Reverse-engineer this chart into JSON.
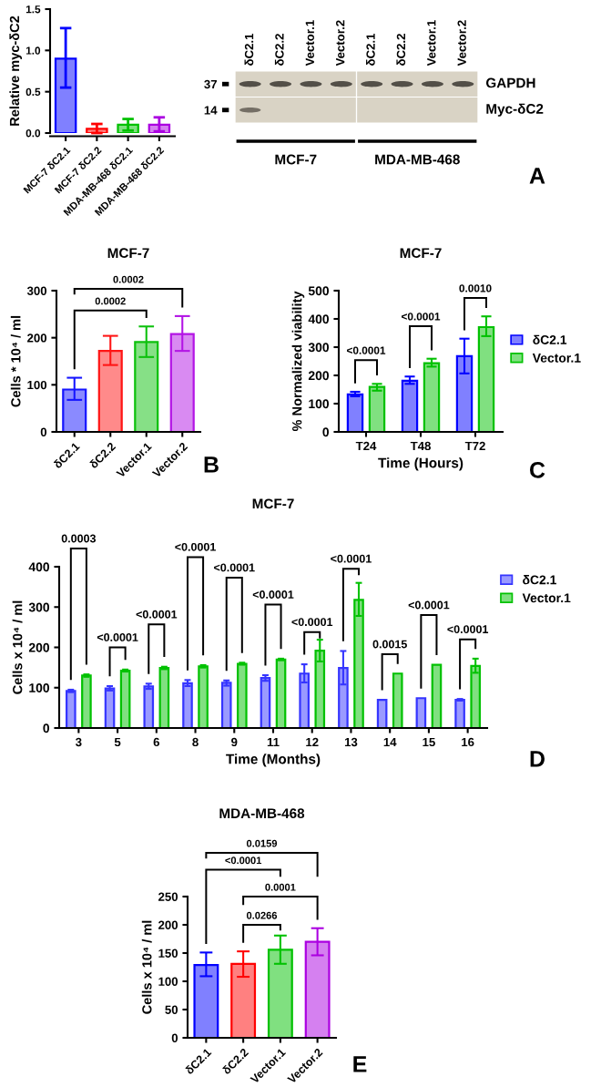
{
  "chart_data": [
    {
      "type": "bar",
      "ylabel": "Relative myc-δC2",
      "categories": [
        "MCF-7 δC2.1",
        "MCF-7 δC2.2",
        "MDA-MB-468 δC2.1",
        "MDA-MB-468 δC2.2"
      ],
      "values": [
        0.9,
        0.05,
        0.1,
        0.1
      ],
      "errors": [
        [
          0.55,
          1.27
        ],
        [
          0,
          0.11
        ],
        [
          0.03,
          0.17
        ],
        [
          0.02,
          0.19
        ]
      ],
      "colors": [
        "#8080ff",
        "#ff8080",
        "#80e080",
        "#d580f0"
      ],
      "ylim": [
        0,
        1.5
      ],
      "yticks": [
        {
          "value": 0,
          "label": "0.0"
        },
        {
          "value": 0.5,
          "label": "0.5"
        },
        {
          "value": 1,
          "label": "1.0"
        },
        {
          "value": 1.5,
          "label": "1.5"
        }
      ]
    },
    {
      "type": "other",
      "categories": [
        "δC2.1",
        "δC2.2",
        "Vector.1",
        "Vector.2",
        "δC2.1",
        "δC2.2",
        "Vector.1",
        "Vector.2"
      ],
      "y_categories": [
        "37",
        "14"
      ],
      "y2_categories": [
        "GAPDH",
        "Myc-δC2"
      ],
      "annotations": [
        "MCF-7",
        "MDA-MB-468",
        "A"
      ]
    },
    {
      "type": "bar",
      "title": "MCF-7",
      "ylabel": "Cells * 10⁴ / ml",
      "categories": [
        "δC2.1",
        "δC2.2",
        "Vector.1",
        "Vector.2"
      ],
      "values": [
        90,
        172,
        191,
        208
      ],
      "errors": [
        [
          68,
          115
        ],
        [
          142,
          204
        ],
        [
          159,
          224
        ],
        [
          172,
          246
        ]
      ],
      "colors": [
        "#8a8aff",
        "#ff8a8a",
        "#86e086",
        "#d98af2"
      ],
      "ylim": [
        0,
        300
      ],
      "yticks": [
        0,
        100,
        200,
        300
      ],
      "annotations": [
        "0.0002",
        "0.0002",
        "B"
      ]
    },
    {
      "type": "bar",
      "title": "MCF-7",
      "xlabel": "Time (Hours)",
      "ylabel": "% Normalized viability",
      "categories": [
        "T24",
        "T48",
        "T72"
      ],
      "series": [
        {
          "name": "δC2.1",
          "color": "#8080ff",
          "values": [
            133,
            181,
            268
          ],
          "errors": [
            [
              126,
              142
            ],
            [
              170,
              196
            ],
            [
              207,
              330
            ]
          ]
        },
        {
          "name": "Vector.1",
          "color": "#80e080",
          "values": [
            159,
            243,
            371
          ],
          "errors": [
            [
              146,
              170
            ],
            [
              231,
              259
            ],
            [
              339,
              409
            ]
          ]
        }
      ],
      "ylim": [
        0,
        500
      ],
      "yticks": [
        0,
        100,
        200,
        300,
        400,
        500
      ],
      "legend": "right",
      "annotations": [
        "<0.0001",
        "<0.0001",
        "0.0010",
        "C"
      ]
    },
    {
      "type": "bar",
      "title": "MCF-7",
      "xlabel": "Time (Months)",
      "ylabel": "Cells x 10⁴ / ml",
      "categories": [
        "3",
        "5",
        "6",
        "8",
        "9",
        "11",
        "12",
        "13",
        "14",
        "15",
        "16"
      ],
      "series": [
        {
          "name": "δC2.1",
          "color": "#9a9aff",
          "values": [
            92,
            98,
            103,
            111,
            112,
            124,
            135,
            149,
            70,
            74,
            70
          ],
          "errors": [
            [
              89,
              95
            ],
            [
              93,
              104
            ],
            [
              97,
              110
            ],
            [
              104,
              119
            ],
            [
              105,
              118
            ],
            [
              117,
              131
            ],
            [
              113,
              158
            ],
            [
              108,
              191
            ],
            null,
            null,
            [
              68,
              72
            ]
          ]
        },
        {
          "name": "Vector.1",
          "color": "#80e080",
          "values": [
            130,
            142,
            149,
            153,
            159,
            170,
            192,
            318,
            135,
            157,
            154
          ],
          "errors": [
            [
              127,
              133
            ],
            [
              140,
              145
            ],
            [
              146,
              152
            ],
            [
              150,
              156
            ],
            [
              157,
              162
            ],
            [
              168,
              172
            ],
            [
              165,
              219
            ],
            [
              278,
              360
            ],
            null,
            null,
            [
              137,
              172
            ]
          ]
        }
      ],
      "ylim": [
        0,
        400
      ],
      "yticks": [
        0,
        100,
        200,
        300,
        400
      ],
      "legend": "top right",
      "annotations": [
        "0.0003",
        "<0.0001",
        "<0.0001",
        "<0.0001",
        "<0.0001",
        "<0.0001",
        "<0.0001",
        "<0.0001",
        "0.0015",
        "<0.0001",
        "<0.0001",
        "D"
      ]
    },
    {
      "type": "bar",
      "title": "MDA-MB-468",
      "ylabel": "Cells x 10⁴ / ml",
      "categories": [
        "δC2.1",
        "δC2.2",
        "Vector.1",
        "Vector.2"
      ],
      "values": [
        129,
        131,
        156,
        170
      ],
      "errors": [
        [
          109,
          151
        ],
        [
          108,
          153
        ],
        [
          131,
          181
        ],
        [
          146,
          194
        ]
      ],
      "colors": [
        "#8080ff",
        "#ff8080",
        "#80e080",
        "#d580f0"
      ],
      "ylim": [
        0,
        250
      ],
      "yticks": [
        0,
        50,
        100,
        150,
        200,
        250
      ],
      "annotations": [
        "0.0159",
        "<0.0001",
        "0.0001",
        "0.0266",
        "E"
      ]
    }
  ]
}
